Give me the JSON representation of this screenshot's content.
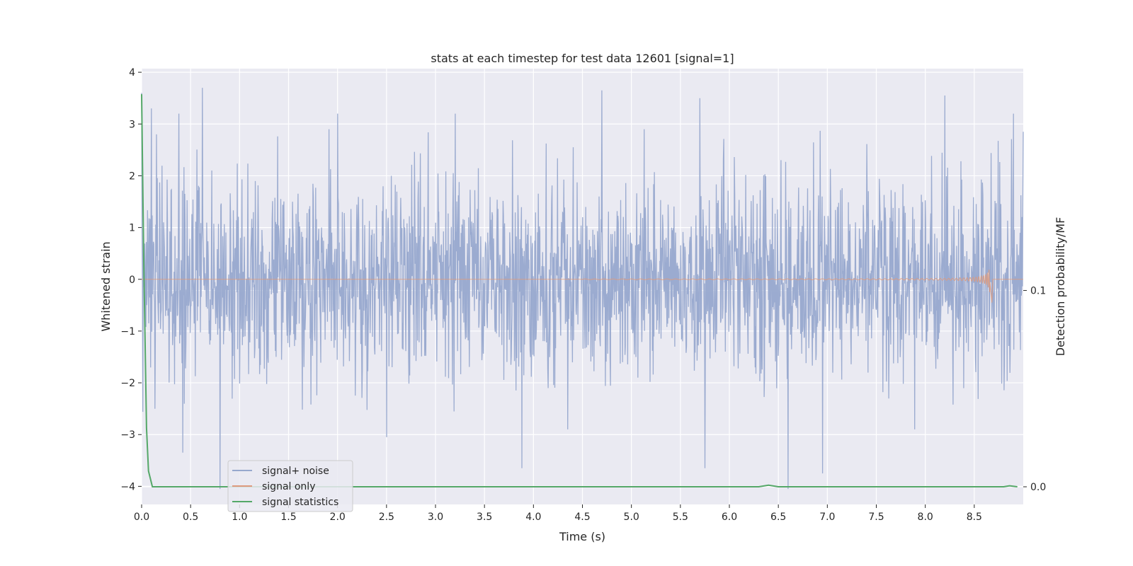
{
  "chart_data": {
    "type": "line",
    "title": "stats at each timestep for test data 12601 [signal=1]",
    "xlabel": "Time (s)",
    "ylabel": "Whitened strain",
    "ylabel_right": "Detection probability/MF",
    "xlim": [
      0.0,
      9.0
    ],
    "ylim": [
      -4.35,
      4.07
    ],
    "ylim_right": [
      -0.009,
      0.213
    ],
    "x_ticks": [
      "0.0",
      "0.5",
      "1.0",
      "1.5",
      "2.0",
      "2.5",
      "3.0",
      "3.5",
      "4.0",
      "4.5",
      "5.0",
      "5.5",
      "6.0",
      "6.5",
      "7.0",
      "7.5",
      "8.0",
      "8.5"
    ],
    "y_ticks": [
      "4",
      "3",
      "2",
      "1",
      "0",
      "−1",
      "−2",
      "−3",
      "−4"
    ],
    "y_right_ticks": [
      "0.1",
      "0.0"
    ],
    "grid": true,
    "legend_position": "lower-left",
    "series": [
      {
        "name": "signal+ noise",
        "color": "#97a8cd",
        "description_values": "dense gaussian-like noise, amplitude mostly within -2.5..2.5",
        "sample_count": 2250,
        "spikes": [
          {
            "x": 0.0,
            "y": 3.6
          },
          {
            "x": 0.1,
            "y": 3.3
          },
          {
            "x": 0.38,
            "y": 3.2
          },
          {
            "x": 0.42,
            "y": -3.35
          },
          {
            "x": 0.62,
            "y": 3.7
          },
          {
            "x": 0.8,
            "y": -4.05
          },
          {
            "x": 2.0,
            "y": 3.2
          },
          {
            "x": 2.5,
            "y": -3.05
          },
          {
            "x": 3.2,
            "y": 3.2
          },
          {
            "x": 3.88,
            "y": -3.65
          },
          {
            "x": 4.7,
            "y": 3.65
          },
          {
            "x": 5.7,
            "y": 3.5
          },
          {
            "x": 5.75,
            "y": -3.65
          },
          {
            "x": 6.6,
            "y": -4.05
          },
          {
            "x": 6.95,
            "y": -3.75
          },
          {
            "x": 8.2,
            "y": 3.55
          },
          {
            "x": 8.9,
            "y": 3.2
          },
          {
            "x": 9.0,
            "y": 2.85
          }
        ]
      },
      {
        "name": "signal only",
        "color": "#dd9a7e",
        "chirp_start": 4.5,
        "chirp_peak": 8.66,
        "peak_amplitude": 0.55
      },
      {
        "name": "signal statistics",
        "color": "#55a868",
        "axis": "right",
        "x": [
          0.0,
          0.02,
          0.05,
          0.07,
          0.11,
          0.5,
          1.0,
          2.0,
          3.0,
          4.0,
          5.0,
          6.0,
          6.3,
          6.4,
          6.5,
          7.0,
          8.0,
          8.8,
          8.86,
          8.94
        ],
        "y": [
          0.2,
          0.12,
          0.03,
          0.008,
          0.0,
          0.0,
          0.0,
          0.0,
          0.0,
          0.0,
          0.0,
          0.0,
          0.0,
          0.0008,
          0.0,
          0.0,
          0.0,
          0.0,
          0.0005,
          0.0
        ]
      }
    ],
    "legend": [
      "signal+ noise",
      "signal only",
      "signal statistics"
    ]
  }
}
